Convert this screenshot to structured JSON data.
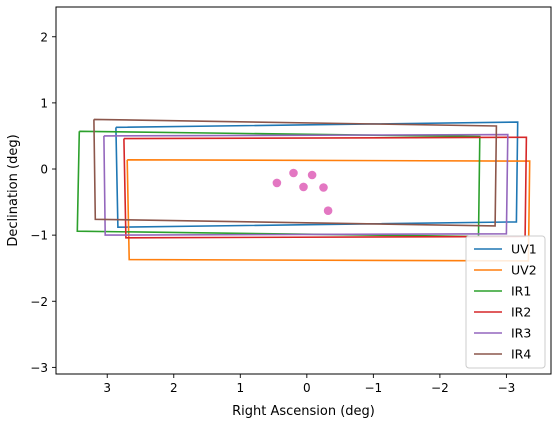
{
  "chart_data": {
    "type": "line",
    "xlabel": "Right Ascension (deg)",
    "ylabel": "Declination (deg)",
    "xlim": [
      3.77,
      -3.67
    ],
    "ylim": [
      -3.1,
      2.45
    ],
    "x_inverted": true,
    "xticks": [
      3,
      2,
      1,
      0,
      -1,
      -2,
      -3
    ],
    "xtick_labels": [
      "3",
      "2",
      "1",
      "0",
      "−1",
      "−2",
      "−3"
    ],
    "yticks": [
      -3,
      -2,
      -1,
      0,
      1,
      2
    ],
    "ytick_labels": [
      "−3",
      "−2",
      "−1",
      "0",
      "1",
      "2"
    ],
    "grid": false,
    "legend_position": "lower-right",
    "series": [
      {
        "name": "UV1",
        "color": "#1f77b4",
        "x": [
          2.87,
          -3.17,
          -3.15,
          2.84,
          2.87
        ],
        "y": [
          0.63,
          0.71,
          -0.8,
          -0.88,
          0.63
        ]
      },
      {
        "name": "UV2",
        "color": "#ff7f0e",
        "x": [
          2.7,
          -3.35,
          -3.33,
          2.67,
          2.7
        ],
        "y": [
          0.14,
          0.12,
          -1.39,
          -1.37,
          0.14
        ]
      },
      {
        "name": "IR1",
        "color": "#2ca02c",
        "x": [
          3.42,
          -2.6,
          -2.58,
          3.45,
          3.42
        ],
        "y": [
          0.57,
          0.49,
          -1.02,
          -0.94,
          0.57
        ]
      },
      {
        "name": "IR2",
        "color": "#d62728",
        "x": [
          2.75,
          -3.3,
          -3.28,
          2.72,
          2.75
        ],
        "y": [
          0.46,
          0.48,
          -1.02,
          -1.04,
          0.46
        ]
      },
      {
        "name": "IR3",
        "color": "#9467bd",
        "x": [
          3.05,
          -3.02,
          -3.0,
          3.03,
          3.05
        ],
        "y": [
          0.5,
          0.52,
          -0.98,
          -1.0,
          0.5
        ]
      },
      {
        "name": "IR4",
        "color": "#8c564b",
        "x": [
          3.2,
          -2.85,
          -2.83,
          3.18,
          3.2
        ],
        "y": [
          0.75,
          0.65,
          -0.86,
          -0.76,
          0.75
        ]
      }
    ],
    "points": {
      "color": "#e377c2",
      "x": [
        0.45,
        0.2,
        0.05,
        -0.08,
        -0.25,
        -0.32
      ],
      "y": [
        -0.21,
        -0.06,
        -0.27,
        -0.09,
        -0.28,
        -0.63
      ]
    }
  }
}
